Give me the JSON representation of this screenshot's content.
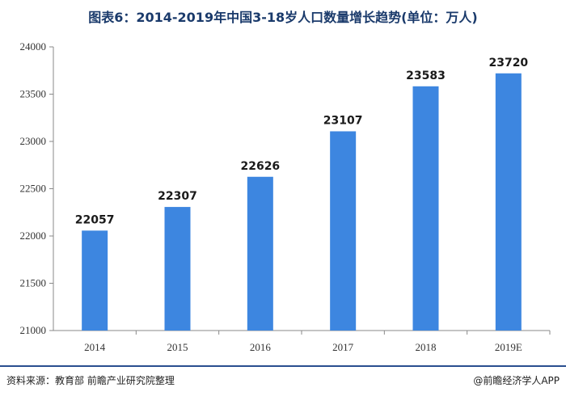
{
  "header": {
    "title": "图表6：2014-2019年中国3-18岁人口数量增长趋势(单位：万人)"
  },
  "footer": {
    "source": "资料来源：教育部 前瞻产业研究院整理",
    "brand": "@前瞻经济学人APP"
  },
  "colors": {
    "bar": "#3d86e0",
    "axis": "#888888",
    "footer_rule": "#2a4f8f"
  },
  "chart_data": {
    "type": "bar",
    "categories": [
      "2014",
      "2015",
      "2016",
      "2017",
      "2018",
      "2019E"
    ],
    "values": [
      22057,
      22307,
      22626,
      23107,
      23583,
      23720
    ],
    "value_labels": [
      "22057",
      "22307",
      "22626",
      "23107",
      "23583",
      "23720"
    ],
    "ylim": [
      21000,
      24000
    ],
    "yticks": [
      21000,
      21500,
      22000,
      22500,
      23000,
      23500,
      24000
    ],
    "ytick_labels": [
      "21000",
      "21500",
      "22000",
      "22500",
      "23000",
      "23500",
      "24000"
    ],
    "title": "图表6：2014-2019年中国3-18岁人口数量增长趋势(单位：万人)",
    "xlabel": "",
    "ylabel": "",
    "grid": false,
    "legend": "none"
  }
}
